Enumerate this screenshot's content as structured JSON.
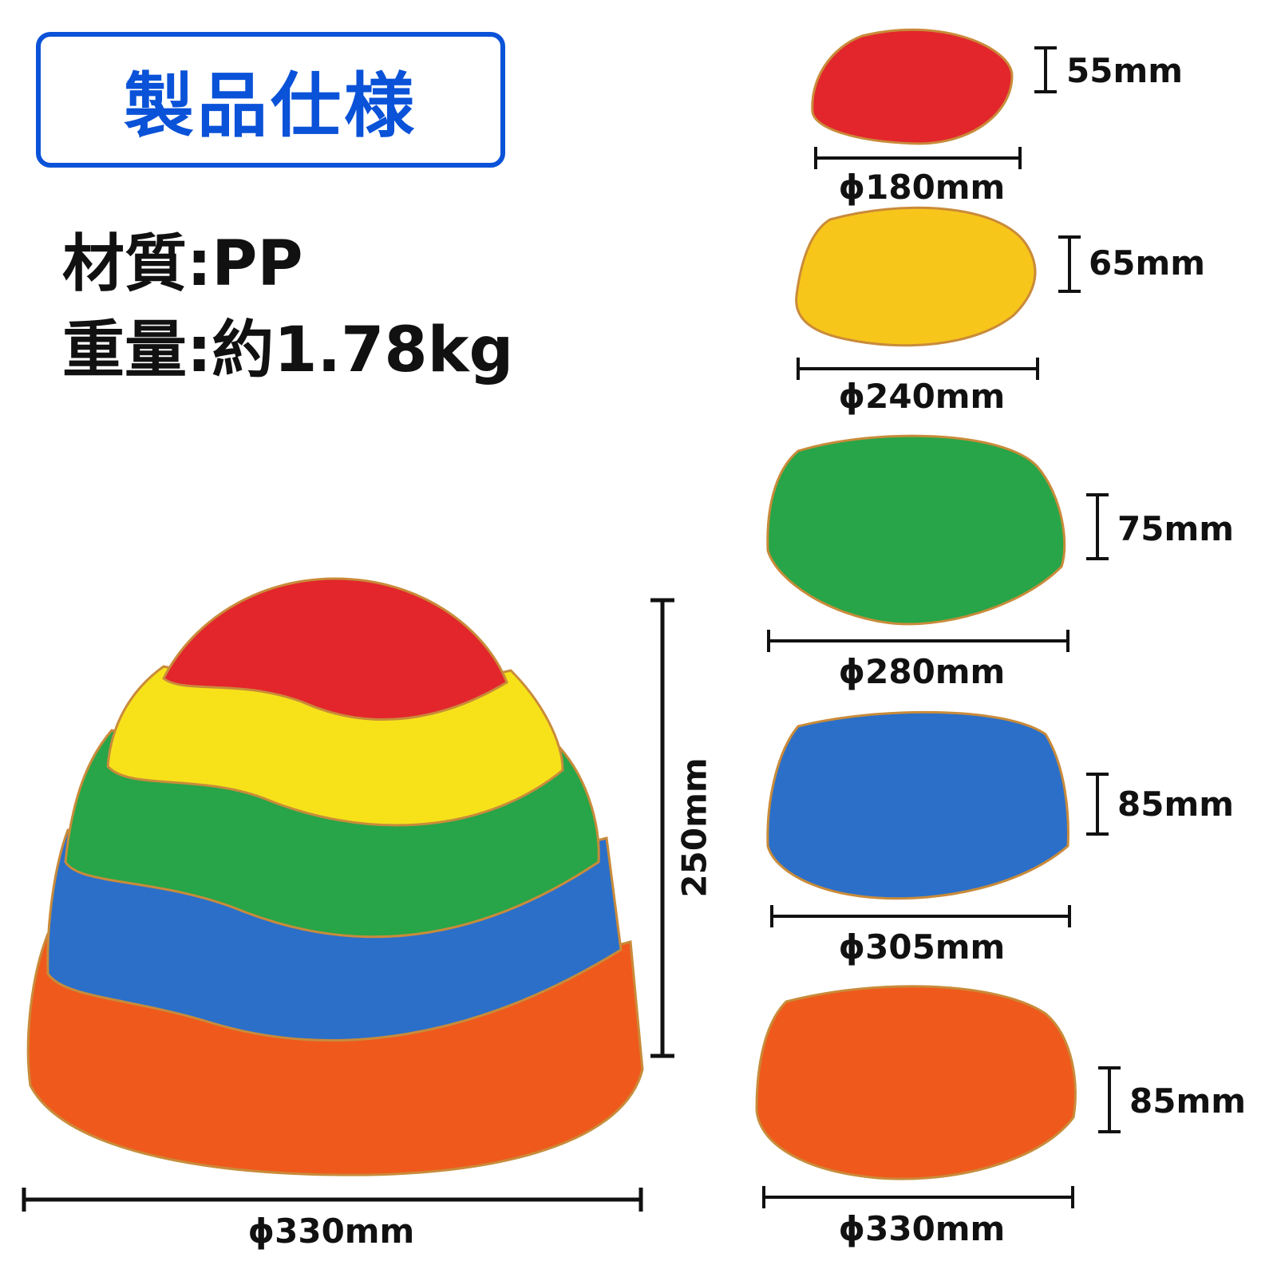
{
  "title": "製品仕様",
  "specs": {
    "material": "材質:PP",
    "weight": "重量:約1.78kg"
  },
  "stack": {
    "height_label": "250mm",
    "diameter_label": "ϕ330mm"
  },
  "stones": [
    {
      "color": "#e3262b",
      "height": "55mm",
      "diameter": "ϕ180mm"
    },
    {
      "color": "#f7c61a",
      "height": "65mm",
      "diameter": "ϕ240mm"
    },
    {
      "color": "#27a548",
      "height": "75mm",
      "diameter": "ϕ280mm"
    },
    {
      "color": "#2b6fc9",
      "height": "85mm",
      "diameter": "ϕ305mm"
    },
    {
      "color": "#ef5a1c",
      "height": "85mm",
      "diameter": "ϕ330mm"
    }
  ],
  "colors": {
    "accent": "#0a52d8",
    "text": "#111111"
  }
}
